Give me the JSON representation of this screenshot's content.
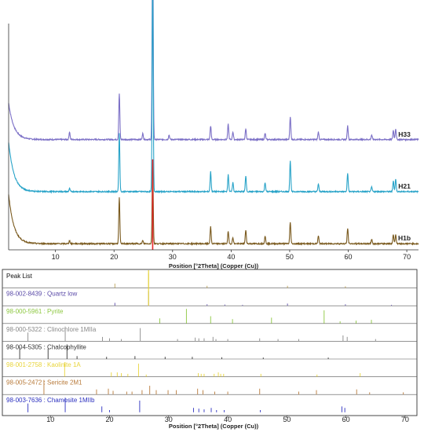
{
  "chart_data": [
    {
      "type": "line",
      "title": "",
      "xlabel": "Position [°2Theta] (Copper (Cu))",
      "ylabel": "",
      "xlim": [
        2,
        72
      ],
      "xticks": [
        10,
        20,
        30,
        40,
        50,
        60,
        70
      ],
      "grid": false,
      "series": [
        {
          "name": "H33",
          "color": "#7b6fc6",
          "baseline": 0.72,
          "tail": 0.7,
          "peaks": [
            {
              "x": 12.4,
              "h": 0.05
            },
            {
              "x": 20.9,
              "h": 0.3
            },
            {
              "x": 24.9,
              "h": 0.04
            },
            {
              "x": 26.6,
              "h": 1.4
            },
            {
              "x": 29.4,
              "h": 0.03
            },
            {
              "x": 36.5,
              "h": 0.09
            },
            {
              "x": 39.5,
              "h": 0.1
            },
            {
              "x": 40.3,
              "h": 0.05
            },
            {
              "x": 42.5,
              "h": 0.07
            },
            {
              "x": 45.8,
              "h": 0.04
            },
            {
              "x": 50.1,
              "h": 0.15
            },
            {
              "x": 54.9,
              "h": 0.05
            },
            {
              "x": 59.9,
              "h": 0.09
            },
            {
              "x": 64.0,
              "h": 0.03
            },
            {
              "x": 67.7,
              "h": 0.06
            },
            {
              "x": 68.1,
              "h": 0.07
            }
          ],
          "label": "H33"
        },
        {
          "name": "H21",
          "color": "#28a3c8",
          "baseline": 0.38,
          "tail": 0.95,
          "peaks": [
            {
              "x": 12.4,
              "h": 0.02
            },
            {
              "x": 20.9,
              "h": 0.38
            },
            {
              "x": 26.6,
              "h": 1.38
            },
            {
              "x": 36.5,
              "h": 0.13
            },
            {
              "x": 39.5,
              "h": 0.11
            },
            {
              "x": 40.3,
              "h": 0.06
            },
            {
              "x": 42.5,
              "h": 0.1
            },
            {
              "x": 45.8,
              "h": 0.06
            },
            {
              "x": 50.1,
              "h": 0.2
            },
            {
              "x": 54.9,
              "h": 0.05
            },
            {
              "x": 59.9,
              "h": 0.12
            },
            {
              "x": 64.0,
              "h": 0.03
            },
            {
              "x": 67.7,
              "h": 0.07
            },
            {
              "x": 68.1,
              "h": 0.08
            }
          ],
          "label": "H21"
        },
        {
          "name": "H1b",
          "color": "#7a5a1e",
          "baseline": 0.04,
          "tail": 0.95,
          "peaks": [
            {
              "x": 12.4,
              "h": 0.02
            },
            {
              "x": 20.9,
              "h": 0.3
            },
            {
              "x": 24.9,
              "h": 0.02
            },
            {
              "x": 26.6,
              "h": 0.55
            },
            {
              "x": 36.5,
              "h": 0.11
            },
            {
              "x": 39.5,
              "h": 0.08
            },
            {
              "x": 40.3,
              "h": 0.04
            },
            {
              "x": 42.5,
              "h": 0.09
            },
            {
              "x": 45.8,
              "h": 0.05
            },
            {
              "x": 50.1,
              "h": 0.14
            },
            {
              "x": 54.9,
              "h": 0.05
            },
            {
              "x": 59.9,
              "h": 0.1
            },
            {
              "x": 64.0,
              "h": 0.03
            },
            {
              "x": 67.7,
              "h": 0.06
            },
            {
              "x": 68.1,
              "h": 0.06
            }
          ],
          "label": "H1b",
          "marker_line": {
            "x": 26.6,
            "color": "#e8262a"
          }
        }
      ],
      "ylim": [
        0,
        1.6
      ]
    },
    {
      "type": "bar",
      "title": "Peak List",
      "xlabel": "Position [°2Theta] (Copper (Cu))",
      "xlim": [
        2,
        72
      ],
      "xticks": [
        10,
        20,
        30,
        40,
        50,
        60,
        70
      ],
      "rows": [
        {
          "label": "Peak List",
          "color": "#bba25a",
          "sticks": [
            {
              "x": 20.9,
              "h": 0.3
            },
            {
              "x": 26.6,
              "h": 1.0
            },
            {
              "x": 36.5,
              "h": 0.15
            },
            {
              "x": 50.1,
              "h": 0.15
            },
            {
              "x": 59.9,
              "h": 0.12
            }
          ]
        },
        {
          "label": "98-002-8439 : Quartz low",
          "color": "#5a4aa8",
          "sticks": [
            {
              "x": 20.9,
              "h": 0.2
            },
            {
              "x": 26.6,
              "h": 1.0
            },
            {
              "x": 36.5,
              "h": 0.1
            },
            {
              "x": 39.5,
              "h": 0.08
            },
            {
              "x": 42.5,
              "h": 0.06
            },
            {
              "x": 50.1,
              "h": 0.15
            },
            {
              "x": 59.9,
              "h": 0.1
            },
            {
              "x": 67.7,
              "h": 0.06
            }
          ]
        },
        {
          "label": "98-000-5961 : Pyrite",
          "color": "#8cc73f",
          "sticks": [
            {
              "x": 28.5,
              "h": 0.35
            },
            {
              "x": 33.0,
              "h": 1.0
            },
            {
              "x": 37.1,
              "h": 0.5
            },
            {
              "x": 40.8,
              "h": 0.3
            },
            {
              "x": 47.4,
              "h": 0.4
            },
            {
              "x": 56.3,
              "h": 0.9
            },
            {
              "x": 59.0,
              "h": 0.15
            },
            {
              "x": 61.7,
              "h": 0.2
            },
            {
              "x": 64.3,
              "h": 0.25
            }
          ]
        },
        {
          "label": "98-000-5322 : Clinochlore 1MIIa",
          "color": "#888888",
          "sticks": [
            {
              "x": 6.2,
              "h": 0.6
            },
            {
              "x": 12.5,
              "h": 1.0
            },
            {
              "x": 18.8,
              "h": 0.3
            },
            {
              "x": 20.0,
              "h": 0.2
            },
            {
              "x": 22.0,
              "h": 0.15
            },
            {
              "x": 25.2,
              "h": 0.9
            },
            {
              "x": 31.5,
              "h": 0.15
            },
            {
              "x": 34.5,
              "h": 0.25
            },
            {
              "x": 35.1,
              "h": 0.2
            },
            {
              "x": 36.0,
              "h": 0.2
            },
            {
              "x": 37.5,
              "h": 0.3
            },
            {
              "x": 38.0,
              "h": 0.15
            },
            {
              "x": 40.0,
              "h": 0.15
            },
            {
              "x": 45.4,
              "h": 0.2
            },
            {
              "x": 48.5,
              "h": 0.15
            },
            {
              "x": 52.0,
              "h": 0.15
            },
            {
              "x": 59.5,
              "h": 0.4
            },
            {
              "x": 60.2,
              "h": 0.3
            },
            {
              "x": 65.0,
              "h": 0.15
            }
          ]
        },
        {
          "label": "98-004-5305 : Chalcophyllite",
          "color": "#333333",
          "sticks": [
            {
              "x": 4.8,
              "h": 0.8
            },
            {
              "x": 9.6,
              "h": 0.7
            },
            {
              "x": 12.8,
              "h": 1.0
            },
            {
              "x": 14.5,
              "h": 0.2
            },
            {
              "x": 19.5,
              "h": 0.15
            },
            {
              "x": 24.3,
              "h": 0.2
            },
            {
              "x": 29.4,
              "h": 0.15
            },
            {
              "x": 34.0,
              "h": 0.15
            },
            {
              "x": 39.0,
              "h": 0.12
            },
            {
              "x": 46.0,
              "h": 0.1
            },
            {
              "x": 57.0,
              "h": 0.1
            }
          ]
        },
        {
          "label": "98-001-2758 : Kaolinite 1A",
          "color": "#e8d43a",
          "sticks": [
            {
              "x": 12.4,
              "h": 1.0
            },
            {
              "x": 20.3,
              "h": 0.3
            },
            {
              "x": 21.3,
              "h": 0.3
            },
            {
              "x": 22.0,
              "h": 0.25
            },
            {
              "x": 23.1,
              "h": 0.2
            },
            {
              "x": 24.9,
              "h": 0.9
            },
            {
              "x": 26.2,
              "h": 0.15
            },
            {
              "x": 35.0,
              "h": 0.25
            },
            {
              "x": 35.5,
              "h": 0.2
            },
            {
              "x": 36.0,
              "h": 0.2
            },
            {
              "x": 37.7,
              "h": 0.2
            },
            {
              "x": 38.4,
              "h": 0.3
            },
            {
              "x": 38.8,
              "h": 0.2
            },
            {
              "x": 39.3,
              "h": 0.2
            },
            {
              "x": 45.6,
              "h": 0.2
            },
            {
              "x": 55.1,
              "h": 0.15
            },
            {
              "x": 62.4,
              "h": 0.25
            }
          ]
        },
        {
          "label": "98-005-2472 : Sericite 2M1",
          "color": "#b87a3a",
          "sticks": [
            {
              "x": 8.9,
              "h": 1.0
            },
            {
              "x": 17.8,
              "h": 0.35
            },
            {
              "x": 19.8,
              "h": 0.4
            },
            {
              "x": 20.6,
              "h": 0.25
            },
            {
              "x": 22.9,
              "h": 0.2
            },
            {
              "x": 23.8,
              "h": 0.2
            },
            {
              "x": 25.5,
              "h": 0.3
            },
            {
              "x": 26.8,
              "h": 0.6
            },
            {
              "x": 27.9,
              "h": 0.3
            },
            {
              "x": 29.9,
              "h": 0.3
            },
            {
              "x": 31.3,
              "h": 0.3
            },
            {
              "x": 34.9,
              "h": 0.4
            },
            {
              "x": 35.8,
              "h": 0.3
            },
            {
              "x": 37.8,
              "h": 0.2
            },
            {
              "x": 40.0,
              "h": 0.2
            },
            {
              "x": 45.4,
              "h": 0.4
            },
            {
              "x": 52.0,
              "h": 0.2
            },
            {
              "x": 55.0,
              "h": 0.3
            },
            {
              "x": 61.8,
              "h": 0.35
            },
            {
              "x": 64.0,
              "h": 0.15
            },
            {
              "x": 69.7,
              "h": 0.15
            }
          ]
        },
        {
          "label": "98-003-7636 : Chamosite 1MIIb",
          "color": "#2a2fbf",
          "sticks": [
            {
              "x": 6.2,
              "h": 0.6
            },
            {
              "x": 12.5,
              "h": 1.0
            },
            {
              "x": 18.7,
              "h": 0.4
            },
            {
              "x": 20.0,
              "h": 0.15
            },
            {
              "x": 25.1,
              "h": 0.8
            },
            {
              "x": 34.2,
              "h": 0.3
            },
            {
              "x": 35.1,
              "h": 0.25
            },
            {
              "x": 36.0,
              "h": 0.2
            },
            {
              "x": 37.2,
              "h": 0.3
            },
            {
              "x": 38.1,
              "h": 0.15
            },
            {
              "x": 39.4,
              "h": 0.15
            },
            {
              "x": 45.5,
              "h": 0.15
            },
            {
              "x": 59.3,
              "h": 0.4
            },
            {
              "x": 59.8,
              "h": 0.3
            }
          ]
        }
      ],
      "header_bar_color": "#e8d43a"
    }
  ]
}
